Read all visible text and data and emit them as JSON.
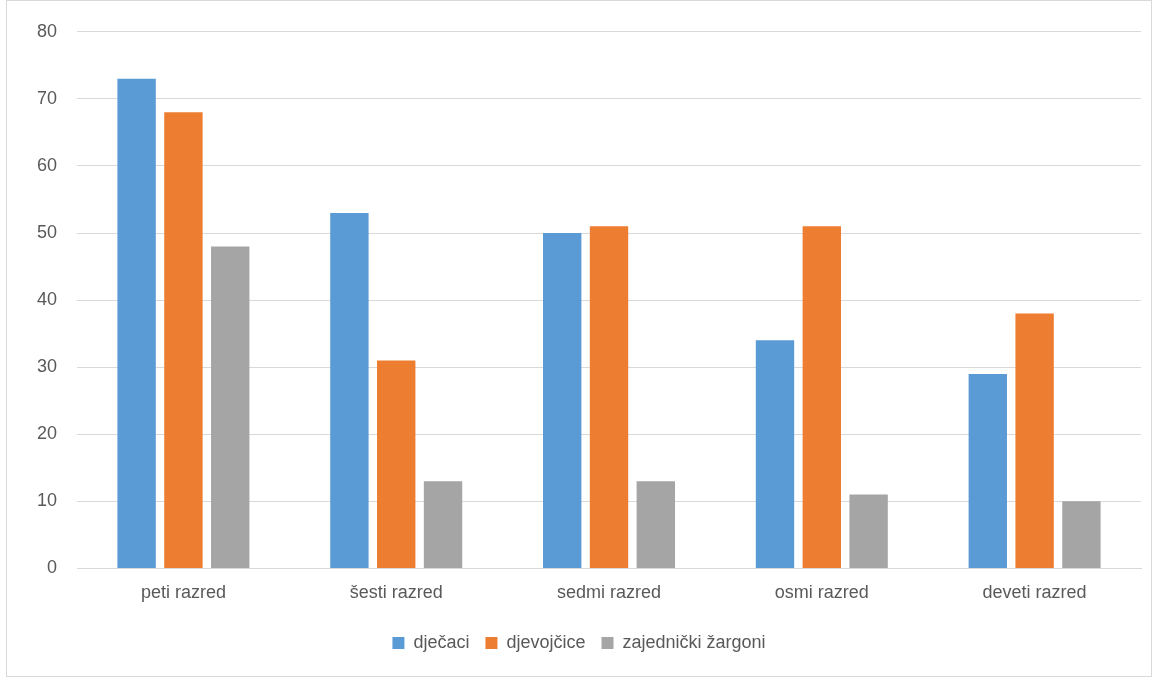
{
  "chart_data": {
    "type": "bar",
    "categories": [
      "peti razred",
      "šesti razred",
      "sedmi razred",
      "osmi razred",
      "deveti razred"
    ],
    "series": [
      {
        "name": "dječaci",
        "color": "#5b9bd5",
        "values": [
          73,
          53,
          50,
          34,
          29
        ]
      },
      {
        "name": "djevojčice",
        "color": "#ed7d31",
        "values": [
          68,
          31,
          51,
          51,
          38
        ]
      },
      {
        "name": "zajednički žargoni",
        "color": "#a5a5a5",
        "values": [
          48,
          13,
          13,
          11,
          10
        ]
      }
    ],
    "ylim": [
      0,
      80
    ],
    "yticks": [
      0,
      10,
      20,
      30,
      40,
      50,
      60,
      70,
      80
    ],
    "grid": "y",
    "legend": "bottom"
  }
}
